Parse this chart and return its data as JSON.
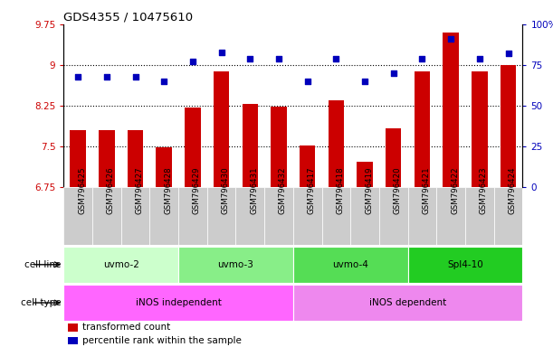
{
  "title": "GDS4355 / 10475610",
  "samples": [
    "GSM796425",
    "GSM796426",
    "GSM796427",
    "GSM796428",
    "GSM796429",
    "GSM796430",
    "GSM796431",
    "GSM796432",
    "GSM796417",
    "GSM796418",
    "GSM796419",
    "GSM796420",
    "GSM796421",
    "GSM796422",
    "GSM796423",
    "GSM796424"
  ],
  "bar_values": [
    7.8,
    7.8,
    7.8,
    7.48,
    8.22,
    8.88,
    8.28,
    8.24,
    7.52,
    8.35,
    7.22,
    7.84,
    8.88,
    9.6,
    8.88,
    9.0
  ],
  "dot_values": [
    68,
    68,
    68,
    65,
    77,
    83,
    79,
    79,
    65,
    79,
    65,
    70,
    79,
    91,
    79,
    82
  ],
  "ylim_left": [
    6.75,
    9.75
  ],
  "ylim_right": [
    0,
    100
  ],
  "yticks_left": [
    6.75,
    7.5,
    8.25,
    9.0,
    9.75
  ],
  "ytick_labels_left": [
    "6.75",
    "7.5",
    "8.25",
    "9",
    "9.75"
  ],
  "yticks_right": [
    0,
    25,
    50,
    75,
    100
  ],
  "ytick_labels_right": [
    "0",
    "25",
    "50",
    "75",
    "100%"
  ],
  "hlines": [
    7.5,
    8.25,
    9.0
  ],
  "cell_lines": [
    {
      "label": "uvmo-2",
      "start": 0,
      "end": 4,
      "color": "#ccffcc"
    },
    {
      "label": "uvmo-3",
      "start": 4,
      "end": 8,
      "color": "#88ee88"
    },
    {
      "label": "uvmo-4",
      "start": 8,
      "end": 12,
      "color": "#55dd55"
    },
    {
      "label": "Spl4-10",
      "start": 12,
      "end": 16,
      "color": "#22cc22"
    }
  ],
  "cell_types": [
    {
      "label": "iNOS independent",
      "start": 0,
      "end": 8,
      "color": "#ff66ff"
    },
    {
      "label": "iNOS dependent",
      "start": 8,
      "end": 16,
      "color": "#ee88ee"
    }
  ],
  "bar_color": "#cc0000",
  "dot_color": "#0000bb",
  "bar_bottom": 6.75,
  "legend_items": [
    {
      "color": "#cc0000",
      "label": "transformed count"
    },
    {
      "color": "#0000bb",
      "label": "percentile rank within the sample"
    }
  ],
  "ylabel_left_color": "#cc0000",
  "ylabel_right_color": "#0000bb",
  "sample_box_color": "#cccccc",
  "left_label_color": "#333333"
}
